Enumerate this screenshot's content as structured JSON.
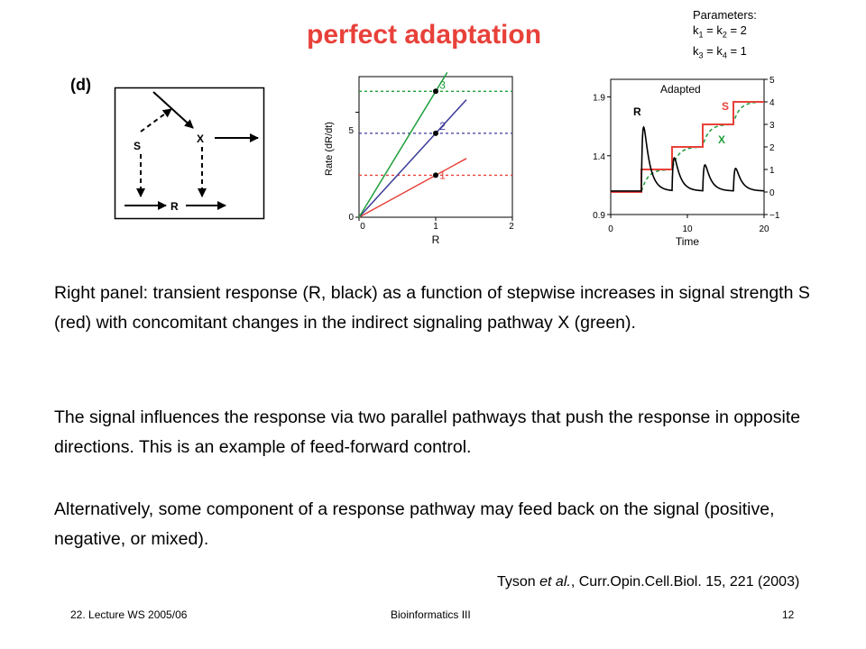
{
  "slide": {
    "title": "perfect adaptation",
    "parameters": {
      "heading": "Parameters:",
      "line1": [
        "k",
        "1",
        " = k",
        "2",
        " = 2"
      ],
      "line2": [
        "k",
        "3",
        " = k",
        "4",
        " = 1"
      ]
    },
    "panel_label": "(d)",
    "paragraphs": [
      "Right panel: transient response (R, black) as a function of stepwise increases in signal strength S (red) with concomitant changes in the indirect signaling pathway X (green).",
      "The signal influences the response via two parallel pathways that push the response in opposite directions. This is an example of feed-forward control.",
      "Alternatively, some component of a response pathway may feed back on the signal (positive, negative, or mixed)."
    ],
    "citation": {
      "authors": "Tyson ",
      "etal": "et al.",
      "rest": ", Curr.Opin.Cell.Biol. 15, 221 (2003)"
    },
    "footer": {
      "left": "22. Lecture WS 2005/06",
      "center": "Bioinformatics III",
      "right": "12"
    }
  },
  "diagram": {
    "nodes": [
      "S",
      "X",
      "R"
    ]
  },
  "chart_data": [
    {
      "type": "line",
      "xlabel": "R",
      "ylabel": "Rate (dR/dt)",
      "xlim": [
        0,
        2
      ],
      "ylim": [
        0,
        6.7
      ],
      "xticks": [
        "0",
        "1",
        "2"
      ],
      "yticks": [
        "0",
        "5"
      ],
      "series": [
        {
          "label": "1",
          "color": "#e8413a",
          "slope": 2.0,
          "level": 2.0,
          "x_end": 1.4
        },
        {
          "label": "2",
          "color": "#3b3a9a",
          "slope": 4.0,
          "level": 4.0,
          "x_end": 1.4
        },
        {
          "label": "3",
          "color": "#1e9e3a",
          "slope": 6.0,
          "level": 6.0,
          "x_end": 1.15
        }
      ],
      "steady_states": [
        [
          1,
          2
        ],
        [
          1,
          4
        ],
        [
          1,
          6
        ]
      ]
    },
    {
      "type": "line",
      "title": "Adapted",
      "xlabel": "Time",
      "xlim": [
        0,
        20
      ],
      "xticks": [
        "0",
        "10",
        "20"
      ],
      "y_left_lim": [
        0.9,
        2.05
      ],
      "y_left_ticks": [
        "0.9",
        "1.4",
        "1.9"
      ],
      "y_right_lim": [
        -1,
        5
      ],
      "y_right_ticks": [
        "−1",
        "0",
        "1",
        "2",
        "3",
        "4",
        "5"
      ],
      "series_labels": {
        "R": "R",
        "S": "S",
        "X": "X"
      },
      "S_steps": [
        [
          0,
          0
        ],
        [
          4,
          1
        ],
        [
          8,
          2
        ],
        [
          12,
          3
        ],
        [
          16,
          4
        ],
        [
          20,
          4
        ]
      ],
      "R_baseline": 1.1,
      "R_peaks": [
        1.84,
        1.48,
        1.4,
        1.36
      ],
      "step_times": [
        4,
        8,
        12,
        16
      ]
    }
  ]
}
